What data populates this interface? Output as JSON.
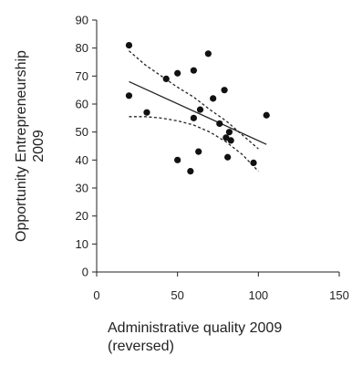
{
  "chart_data": {
    "type": "scatter",
    "xlabel": [
      "Administrative quality 2009",
      "(reversed)"
    ],
    "ylabel": [
      "Opportunity Entrepreneurship",
      "2009"
    ],
    "xlim": [
      0,
      150
    ],
    "ylim": [
      0,
      90
    ],
    "x_ticks": [
      "0",
      "50",
      "100",
      "150"
    ],
    "y_ticks": [
      "0",
      "10",
      "20",
      "30",
      "40",
      "50",
      "60",
      "70",
      "80",
      "90"
    ],
    "points": [
      {
        "x": 20,
        "y": 81
      },
      {
        "x": 20,
        "y": 63
      },
      {
        "x": 31,
        "y": 57
      },
      {
        "x": 43,
        "y": 69
      },
      {
        "x": 50,
        "y": 71
      },
      {
        "x": 50,
        "y": 40
      },
      {
        "x": 58,
        "y": 36
      },
      {
        "x": 60,
        "y": 72
      },
      {
        "x": 60,
        "y": 55
      },
      {
        "x": 63,
        "y": 43
      },
      {
        "x": 64,
        "y": 58
      },
      {
        "x": 69,
        "y": 78
      },
      {
        "x": 72,
        "y": 62
      },
      {
        "x": 76,
        "y": 53
      },
      {
        "x": 79,
        "y": 65
      },
      {
        "x": 80,
        "y": 48
      },
      {
        "x": 81,
        "y": 41
      },
      {
        "x": 82,
        "y": 50
      },
      {
        "x": 83,
        "y": 47
      },
      {
        "x": 97,
        "y": 39
      },
      {
        "x": 105,
        "y": 56
      }
    ],
    "trend_line": {
      "x": [
        20,
        105
      ],
      "y": [
        68,
        45.6
      ]
    },
    "ci_upper": {
      "x": [
        20,
        30,
        40,
        50,
        60,
        70,
        80,
        90,
        100
      ],
      "y": [
        79,
        74,
        70,
        66,
        62.5,
        58,
        54,
        49,
        44
      ]
    },
    "ci_lower": {
      "x": [
        20,
        30,
        40,
        50,
        60,
        70,
        80,
        90,
        100
      ],
      "y": [
        55.5,
        55.5,
        55,
        54,
        52.5,
        50,
        46.5,
        42,
        36
      ]
    },
    "grid": false,
    "legend": "none"
  }
}
